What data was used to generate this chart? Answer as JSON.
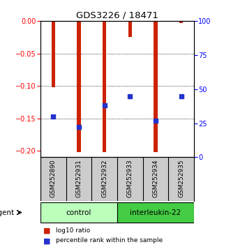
{
  "title": "GDS3226 / 18471",
  "samples": [
    "GSM252890",
    "GSM252931",
    "GSM252932",
    "GSM252933",
    "GSM252934",
    "GSM252935"
  ],
  "log10_ratio": [
    -0.102,
    -0.202,
    -0.202,
    -0.025,
    -0.202,
    -0.003
  ],
  "percentile_rank": [
    30,
    22,
    38,
    45,
    27,
    45
  ],
  "groups": [
    {
      "label": "control",
      "start": 0,
      "end": 3,
      "color": "#bbffbb"
    },
    {
      "label": "interleukin-22",
      "start": 3,
      "end": 6,
      "color": "#44cc44"
    }
  ],
  "bar_color": "#cc2200",
  "percentile_color": "#2233cc",
  "ylim_left": [
    -0.21,
    0.0
  ],
  "ylim_right": [
    0,
    100
  ],
  "yticks_left": [
    0,
    -0.05,
    -0.1,
    -0.15,
    -0.2
  ],
  "yticks_right": [
    0,
    25,
    50,
    75,
    100
  ],
  "background_color": "#ffffff",
  "legend": [
    {
      "label": "log10 ratio",
      "color": "#cc2200"
    },
    {
      "label": "percentile rank within the sample",
      "color": "#2233cc"
    }
  ]
}
